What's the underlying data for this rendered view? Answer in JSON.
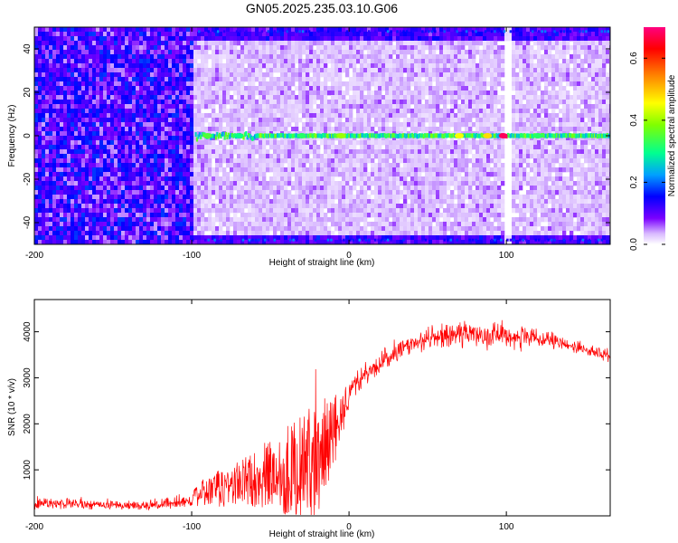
{
  "title": "GN05.2025.235.03.10.G06",
  "chart_data": [
    {
      "type": "heatmap",
      "xlabel": "Height of straight line (km)",
      "ylabel": "Frequency (Hz)",
      "xlim": [
        -200,
        166
      ],
      "ylim": [
        -50,
        50
      ],
      "xticks": [
        -200,
        -100,
        0,
        100
      ],
      "yticks": [
        -40,
        -20,
        0,
        20,
        40
      ],
      "colorbar": {
        "label": "Normalized spectral amplitude",
        "range": [
          0.0,
          0.7
        ],
        "ticks": [
          0.0,
          0.2,
          0.4,
          0.6
        ]
      },
      "features": [
        {
          "name": "carrier line",
          "frequency_hz": 0,
          "x_range_km": [
            -98,
            166
          ],
          "peak_amplitude": 0.68,
          "peak_at_km": 98
        },
        {
          "name": "noise-dominated region",
          "x_range_km": [
            -200,
            -100
          ]
        },
        {
          "name": "band-edge brightening",
          "frequency_hz": [
            -48,
            48
          ]
        }
      ]
    },
    {
      "type": "line",
      "xlabel": "Height of straight line (km)",
      "ylabel": "SNR (10 * v/v)",
      "xlim": [
        -200,
        166
      ],
      "ylim": [
        0,
        4700
      ],
      "xticks": [
        -200,
        -100,
        0,
        100
      ],
      "yticks": [
        1000,
        2000,
        3000,
        4000
      ],
      "color": "#ff0000",
      "envelope": {
        "x": [
          -200,
          -180,
          -150,
          -120,
          -100,
          -95,
          -80,
          -70,
          -60,
          -50,
          -40,
          -30,
          -25,
          -20,
          -15,
          -10,
          -5,
          0,
          5,
          10,
          20,
          30,
          40,
          50,
          60,
          70,
          80,
          90,
          100,
          110,
          120,
          130,
          140,
          150,
          160,
          166
        ],
        "baseline": [
          300,
          260,
          230,
          240,
          330,
          380,
          480,
          560,
          620,
          650,
          700,
          750,
          800,
          850,
          1000,
          1400,
          2200,
          2700,
          2900,
          3050,
          3300,
          3550,
          3750,
          3850,
          3900,
          3950,
          3960,
          3950,
          3920,
          3880,
          3830,
          3780,
          3700,
          3620,
          3520,
          3460
        ],
        "noise": [
          130,
          120,
          110,
          110,
          140,
          280,
          450,
          500,
          620,
          800,
          1000,
          1100,
          1200,
          1300,
          1200,
          900,
          600,
          330,
          300,
          260,
          230,
          220,
          220,
          230,
          250,
          270,
          300,
          300,
          260,
          230,
          200,
          170,
          150,
          140,
          130,
          120
        ]
      }
    }
  ]
}
